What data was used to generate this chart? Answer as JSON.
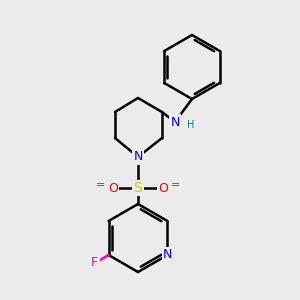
{
  "background_color": "#ebebeb",
  "bond_color": "#000000",
  "bond_lw": 1.8,
  "atom_colors": {
    "N": "#0000ff",
    "O": "#ff0000",
    "S": "#cccc00",
    "F": "#ff00bb",
    "H": "#008080"
  },
  "font_size": 9,
  "font_size_small": 7
}
